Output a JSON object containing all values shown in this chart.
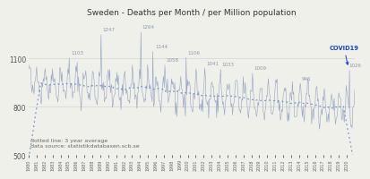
{
  "title": "Sweden - Deaths per Month / per Million population",
  "ylim": [
    500,
    1350
  ],
  "yticks": [
    500,
    800,
    1100
  ],
  "xlim": [
    1980,
    2020.5
  ],
  "background_color": "#f0f0eb",
  "line_color": "#8899bb",
  "smooth_color": "#6688bb",
  "annotation_color": "#8899aa",
  "covid_color": "#1144cc",
  "note_text1": "dotted line: 3 year average",
  "note_text2": "data source: statistikdatabasen.scb.se",
  "ann_peaks": [
    [
      1985.2,
      1103,
      "1103"
    ],
    [
      1989.2,
      1247,
      "1247"
    ],
    [
      1994.1,
      1264,
      "1264"
    ],
    [
      1995.8,
      1144,
      "1144"
    ],
    [
      1997.2,
      1058,
      "1058"
    ],
    [
      1999.9,
      1106,
      "1106"
    ],
    [
      2002.2,
      1041,
      "1041"
    ],
    [
      2004.2,
      1033,
      "1033"
    ],
    [
      2008.2,
      1009,
      "1009"
    ],
    [
      2014.2,
      946,
      "946"
    ],
    [
      2020.1,
      1026,
      "1026"
    ]
  ]
}
